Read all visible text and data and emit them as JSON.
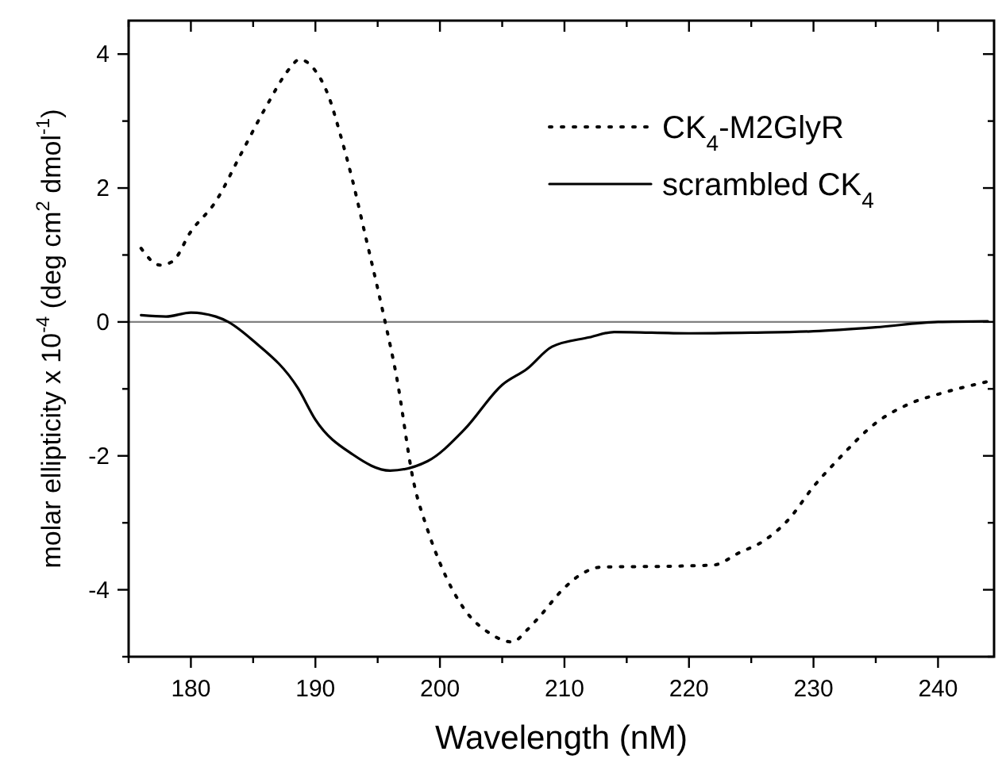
{
  "chart_data": {
    "type": "line",
    "xlabel": "Wavelength (nM)",
    "ylabel": "molar ellipticity x 10$^{-4}$ (deg cm$^{2}$ dmol$^{-1}$)",
    "xlim": [
      175,
      244.5
    ],
    "xticks": [
      {
        "value": 175,
        "label": null
      },
      180,
      {
        "value": 185,
        "label": null
      },
      190,
      {
        "value": 195,
        "label": null
      },
      200,
      {
        "value": 205,
        "label": null
      },
      210,
      {
        "value": 215,
        "label": null
      },
      220,
      {
        "value": 225,
        "label": null
      },
      230,
      {
        "value": 235,
        "label": null
      },
      240
    ],
    "ylim": [
      -5,
      4.5
    ],
    "yticks": [
      {
        "value": -5,
        "label": null
      },
      -4,
      {
        "value": -3,
        "label": null
      },
      -2,
      {
        "value": -1,
        "label": null
      },
      0,
      {
        "value": 1,
        "label": null
      },
      2,
      {
        "value": 3,
        "label": null
      },
      4
    ],
    "legend": "top right",
    "grid": false,
    "ref_lines": [
      {
        "axis": "y",
        "value": 0,
        "label": null,
        "color": "#808080"
      }
    ],
    "series": [
      {
        "name": "CK$_{4}$-M2GlyR",
        "color": "#000000",
        "line_style": "dotted",
        "x": [
          176,
          177.5,
          178.5,
          180,
          182,
          184,
          186,
          188,
          188.7,
          190,
          191,
          192,
          193,
          194,
          195,
          195.6,
          196.5,
          197.9,
          199,
          200,
          202,
          204,
          205.8,
          207,
          208,
          210,
          211.5,
          213,
          218,
          222,
          224,
          226,
          228,
          230,
          232,
          235,
          238,
          240,
          244
        ],
        "values": [
          1.1,
          0.85,
          0.9,
          1.35,
          1.8,
          2.5,
          3.2,
          3.8,
          3.92,
          3.75,
          3.4,
          2.8,
          2.1,
          1.3,
          0.5,
          0,
          -0.8,
          -2.4,
          -3.1,
          -3.6,
          -4.3,
          -4.65,
          -4.78,
          -4.6,
          -4.4,
          -3.97,
          -3.75,
          -3.66,
          -3.65,
          -3.63,
          -3.45,
          -3.27,
          -2.95,
          -2.46,
          -2.05,
          -1.51,
          -1.2,
          -1.08,
          -0.89
        ]
      },
      {
        "name": "scrambled CK$_{4}$",
        "color": "#000000",
        "line_style": "solid",
        "x": [
          176,
          178,
          180,
          182,
          183,
          185,
          188.6,
          190,
          193,
          196,
          199,
          202,
          205,
          207,
          209,
          212,
          214,
          220,
          225,
          230,
          235,
          240,
          244
        ],
        "values": [
          0.1,
          0.08,
          0.14,
          0.08,
          0,
          -0.28,
          -0.99,
          -1.46,
          -1.98,
          -2.22,
          -2.08,
          -1.6,
          -0.94,
          -0.7,
          -0.37,
          -0.23,
          -0.15,
          -0.17,
          -0.16,
          -0.14,
          -0.08,
          0,
          0.01
        ]
      }
    ]
  }
}
